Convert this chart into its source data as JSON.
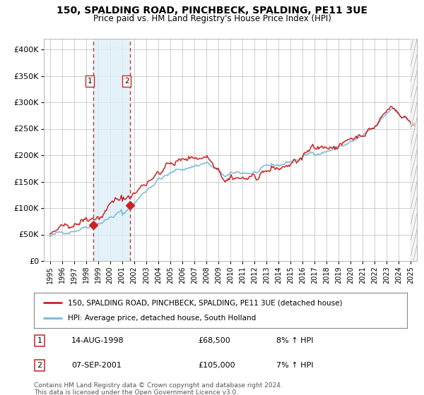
{
  "title1": "150, SPALDING ROAD, PINCHBECK, SPALDING, PE11 3UE",
  "title2": "Price paid vs. HM Land Registry's House Price Index (HPI)",
  "legend_line1": "150, SPALDING ROAD, PINCHBECK, SPALDING, PE11 3UE (detached house)",
  "legend_line2": "HPI: Average price, detached house, South Holland",
  "sale1_date": "14-AUG-1998",
  "sale1_price": "£68,500",
  "sale1_hpi": "8% ↑ HPI",
  "sale2_date": "07-SEP-2001",
  "sale2_price": "£105,000",
  "sale2_hpi": "7% ↑ HPI",
  "footer": "Contains HM Land Registry data © Crown copyright and database right 2024.\nThis data is licensed under the Open Government Licence v3.0.",
  "sale1_year": 1998.62,
  "sale1_value": 68500,
  "sale2_year": 2001.68,
  "sale2_value": 105000,
  "shade_start": 1998.62,
  "shade_end": 2001.68,
  "hpi_color": "#7ab8d9",
  "price_color": "#cc2222",
  "marker_color": "#cc2222",
  "bg_color": "#ffffff",
  "grid_color": "#bbbbbb",
  "shade_color": "#ddeef8",
  "vline_color": "#cc2222",
  "ylim": [
    0,
    420000
  ],
  "yticks": [
    0,
    50000,
    100000,
    150000,
    200000,
    250000,
    300000,
    350000,
    400000
  ],
  "ytick_labels": [
    "£0",
    "£50K",
    "£100K",
    "£150K",
    "£200K",
    "£250K",
    "£300K",
    "£350K",
    "£400K"
  ],
  "xlim_start": 1994.5,
  "xlim_end": 2025.5,
  "xtick_years": [
    1995,
    1996,
    1997,
    1998,
    1999,
    2000,
    2001,
    2002,
    2003,
    2004,
    2005,
    2006,
    2007,
    2008,
    2009,
    2010,
    2011,
    2012,
    2013,
    2014,
    2015,
    2016,
    2017,
    2018,
    2019,
    2020,
    2021,
    2022,
    2023,
    2024,
    2025
  ]
}
